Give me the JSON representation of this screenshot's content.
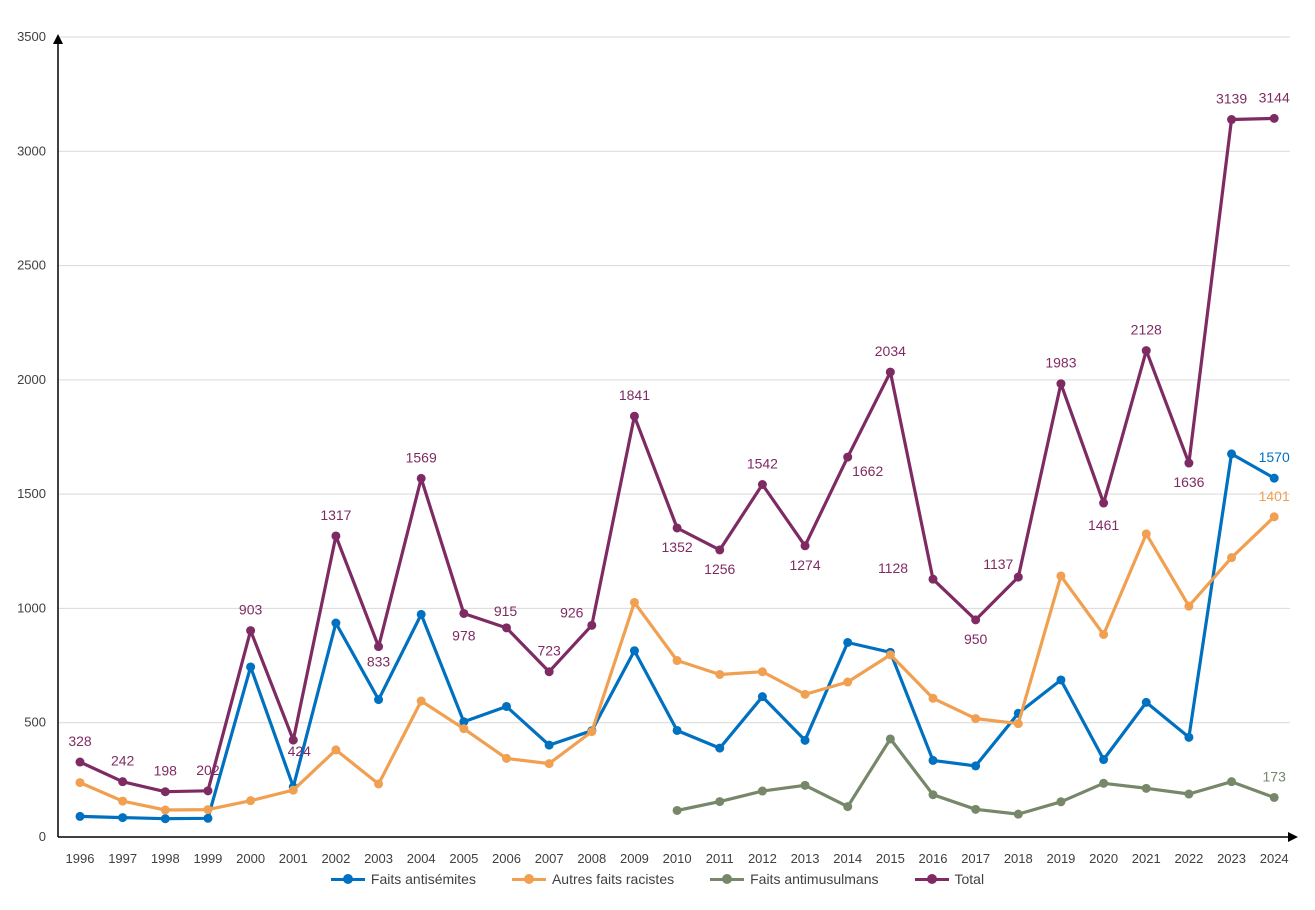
{
  "chart_data": {
    "type": "line",
    "title": "",
    "xlabel": "",
    "ylabel": "",
    "ylim": [
      0,
      3500
    ],
    "yticks": [
      0,
      500,
      1000,
      1500,
      2000,
      2500,
      3000,
      3500
    ],
    "grid": true,
    "legend_position": "bottom",
    "categories": [
      "1996",
      "1997",
      "1998",
      "1999",
      "2000",
      "2001",
      "2002",
      "2003",
      "2004",
      "2005",
      "2006",
      "2007",
      "2008",
      "2009",
      "2010",
      "2011",
      "2012",
      "2013",
      "2014",
      "2015",
      "2016",
      "2017",
      "2018",
      "2019",
      "2020",
      "2021",
      "2022",
      "2023",
      "2024"
    ],
    "series": [
      {
        "name": "Faits antisémites",
        "color": "#0070C0",
        "values": [
          90,
          85,
          80,
          82,
          744,
          219,
          936,
          601,
          974,
          504,
          571,
          402,
          465,
          815,
          466,
          389,
          614,
          423,
          851,
          808,
          335,
          311,
          541,
          687,
          339,
          589,
          436,
          1676,
          1570
        ],
        "labels": [
          null,
          null,
          null,
          null,
          null,
          null,
          null,
          null,
          null,
          null,
          null,
          null,
          null,
          null,
          null,
          null,
          null,
          null,
          null,
          null,
          null,
          null,
          null,
          null,
          null,
          null,
          null,
          null,
          "1570"
        ]
      },
      {
        "name": "Autres faits racistes",
        "color": "#F0A050",
        "values": [
          238,
          157,
          118,
          120,
          159,
          205,
          381,
          232,
          595,
          474,
          344,
          321,
          461,
          1026,
          772,
          711,
          723,
          624,
          678,
          797,
          607,
          518,
          496,
          1142,
          886,
          1326,
          1010,
          1222,
          1401
        ],
        "labels": [
          null,
          null,
          null,
          null,
          null,
          null,
          null,
          null,
          null,
          null,
          null,
          null,
          null,
          null,
          null,
          null,
          null,
          null,
          null,
          null,
          null,
          null,
          null,
          null,
          null,
          null,
          null,
          null,
          "1401"
        ]
      },
      {
        "name": "Faits antimusulmans",
        "color": "#76876A",
        "values": [
          null,
          null,
          null,
          null,
          null,
          null,
          null,
          null,
          null,
          null,
          null,
          null,
          null,
          null,
          116,
          155,
          201,
          226,
          133,
          429,
          185,
          121,
          100,
          154,
          235,
          213,
          188,
          242,
          173
        ],
        "labels": [
          null,
          null,
          null,
          null,
          null,
          null,
          null,
          null,
          null,
          null,
          null,
          null,
          null,
          null,
          null,
          null,
          null,
          null,
          null,
          null,
          null,
          null,
          null,
          null,
          null,
          null,
          null,
          null,
          "173"
        ]
      },
      {
        "name": "Total",
        "color": "#7F2B63",
        "values": [
          328,
          242,
          198,
          202,
          903,
          424,
          1317,
          833,
          1569,
          978,
          915,
          723,
          926,
          1841,
          1352,
          1256,
          1542,
          1274,
          1662,
          2034,
          1128,
          950,
          1137,
          1983,
          1461,
          2128,
          1636,
          3139,
          3144
        ],
        "labels": [
          "328",
          "242",
          "198",
          "202",
          "903",
          "424",
          "1317",
          "833",
          "1569",
          "978",
          "915",
          "723",
          "926",
          "1841",
          "1352",
          "1256",
          "1542",
          "1274",
          "1662",
          "2034",
          "1128",
          "950",
          "1137",
          "1983",
          "1461",
          "2128",
          "1636",
          "3139",
          "3144"
        ]
      }
    ]
  }
}
